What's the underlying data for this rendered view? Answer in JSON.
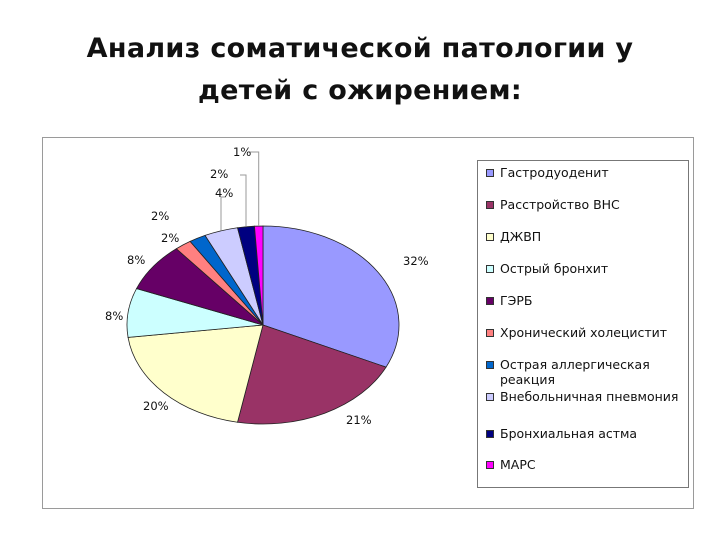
{
  "slide": {
    "title_line1": "Анализ соматической патологии  у",
    "title_line2": "детей с ожирением:"
  },
  "chart_data": {
    "type": "pie",
    "legend_position": "right",
    "categories": [
      "Гастродуоденит",
      "Расстройство ВНС",
      "ДЖВП",
      "Острый бронхит",
      "ГЭРБ",
      "Хронический холецистит",
      "Острая аллергическая реакция",
      "Внебольничная пневмония",
      "Бронхиальная астма",
      "МАРС"
    ],
    "values": [
      32,
      21,
      20,
      8,
      8,
      2,
      2,
      4,
      2,
      1
    ],
    "data_labels": [
      "32%",
      "21%",
      "20%",
      "8%",
      "8%",
      "2%",
      "2%",
      "4%",
      "2%",
      "1%"
    ],
    "colors": [
      "#9999ff",
      "#993366",
      "#ffffcc",
      "#ccffff",
      "#660066",
      "#ff8080",
      "#0066cc",
      "#ccccff",
      "#000080",
      "#ff00ff"
    ]
  }
}
